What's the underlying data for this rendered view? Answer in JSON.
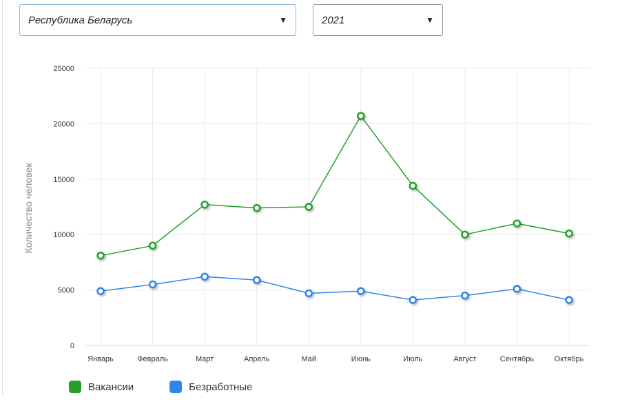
{
  "filters": {
    "region": {
      "value": "Республика Беларусь"
    },
    "year": {
      "value": "2021"
    }
  },
  "chart_data": {
    "type": "line",
    "title": "",
    "xlabel": "",
    "ylabel": "Количество человек",
    "ylim": [
      0,
      25000
    ],
    "yticks": [
      0,
      5000,
      10000,
      15000,
      20000,
      25000
    ],
    "grid": true,
    "legend_position": "bottom-left",
    "categories": [
      "Январь",
      "Февраль",
      "Март",
      "Апрель",
      "Май",
      "Июнь",
      "Июль",
      "Август",
      "Сентябрь",
      "Октябрь"
    ],
    "series": [
      {
        "name": "Вакансии",
        "color": "#22a02a",
        "values": [
          8100,
          9000,
          12700,
          12400,
          12500,
          20700,
          14400,
          10000,
          11000,
          10100
        ]
      },
      {
        "name": "Безработные",
        "color": "#2f85e8",
        "values": [
          4900,
          5500,
          6200,
          5900,
          4700,
          4900,
          4100,
          4500,
          5100,
          4100
        ]
      }
    ]
  }
}
